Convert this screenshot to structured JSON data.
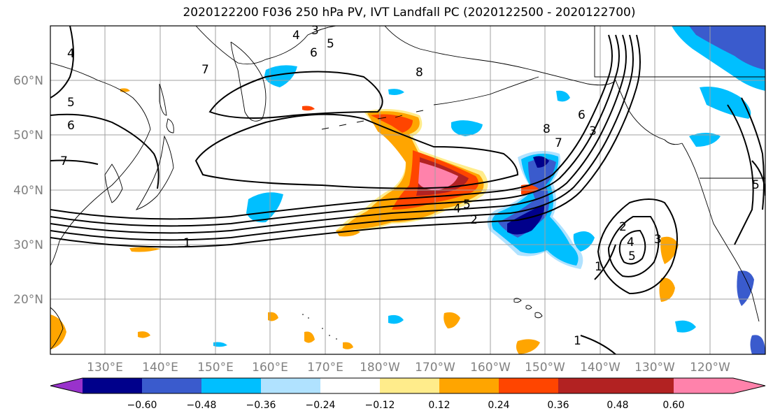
{
  "title": "2020122200 F036 250 hPa PV, IVT Landfall PC (2020122500 - 2020122700)",
  "lat_labels": [
    "60°N",
    "50°N",
    "40°N",
    "30°N",
    "20°N"
  ],
  "lon_labels": [
    "130°E",
    "140°E",
    "150°E",
    "160°E",
    "170°E",
    "180°W",
    "170°W",
    "160°W",
    "150°W",
    "140°W",
    "130°W",
    "120°W"
  ],
  "colorbar": {
    "colors": [
      "#9932cc",
      "#00008b",
      "#3a5bcd",
      "#00bfff",
      "#b0e2ff",
      "#ffffff",
      "#ffec8b",
      "#ffa500",
      "#ff4500",
      "#b22222",
      "#ff82ab"
    ],
    "tick_labels": [
      "−0.60",
      "−0.48",
      "−0.36",
      "−0.24",
      "−0.12",
      "0.12",
      "0.24",
      "0.36",
      "0.48",
      "0.60"
    ]
  },
  "contour_labels": [
    "4",
    "3",
    "5",
    "6",
    "4",
    "7",
    "5",
    "6",
    "7",
    "1",
    "8",
    "6",
    "3",
    "8",
    "7",
    "5",
    "4",
    "2",
    "2",
    "3",
    "4",
    "5",
    "1",
    "1",
    "5"
  ]
}
